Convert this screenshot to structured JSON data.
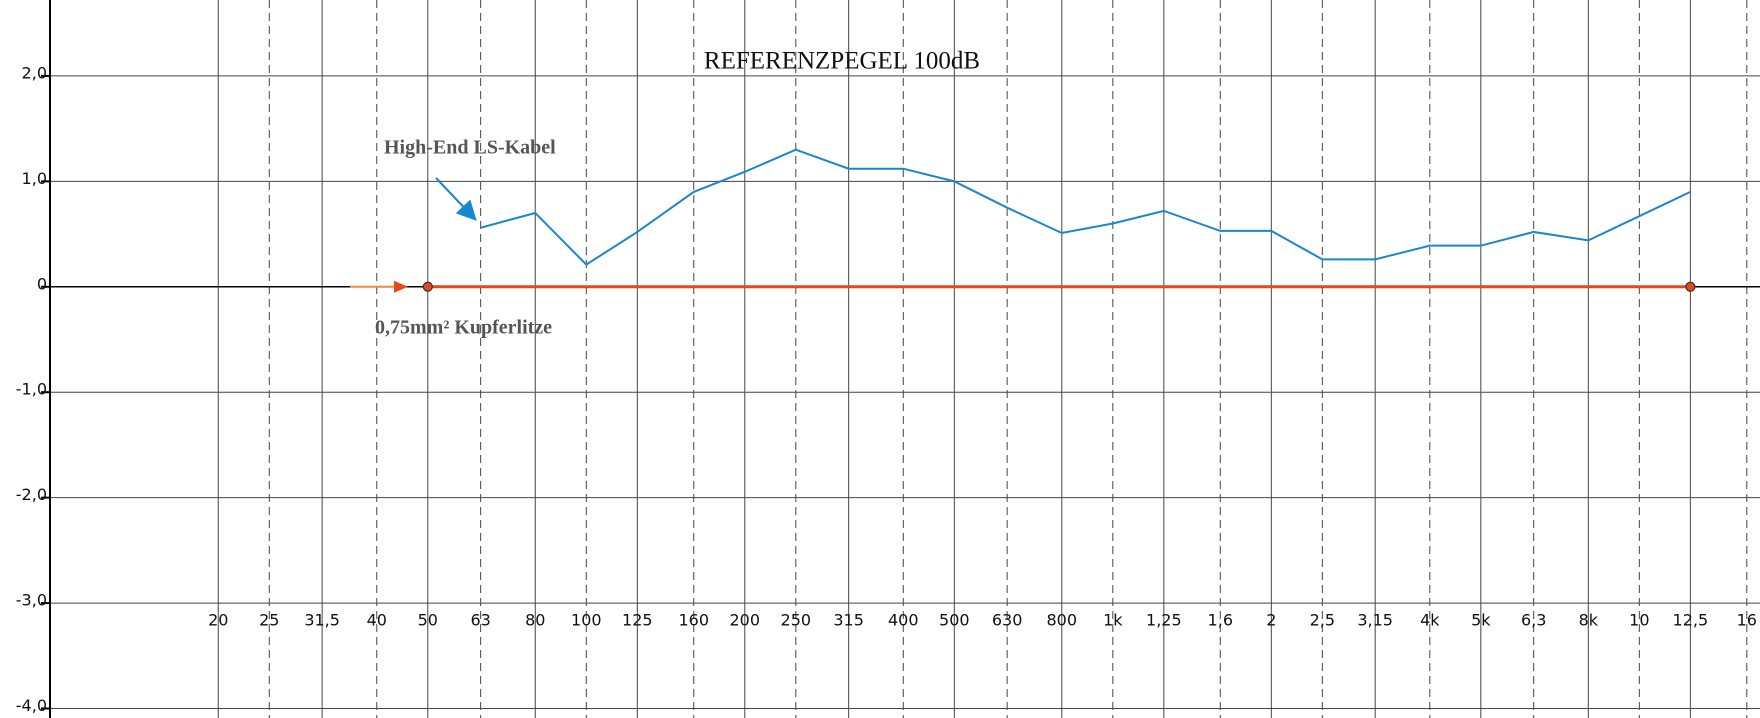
{
  "chart_data": {
    "type": "line",
    "title": "REFERENZPEGEL 100dB",
    "xscale": "log",
    "grid": true,
    "xlim": [
      7.7,
      16950
    ],
    "ylim": [
      -4.09,
      2.72
    ],
    "xticks": [
      20,
      25,
      {
        "value": 31.5,
        "label": "31,5"
      },
      40,
      50,
      63,
      80,
      100,
      125,
      160,
      200,
      250,
      315,
      400,
      500,
      630,
      800,
      {
        "value": 1000,
        "label": "1k"
      },
      {
        "value": 1250,
        "label": "1,25"
      },
      {
        "value": 1600,
        "label": "1,6"
      },
      {
        "value": 2000,
        "label": "2"
      },
      {
        "value": 2500,
        "label": "2,5"
      },
      {
        "value": 3150,
        "label": "3,15"
      },
      {
        "value": 4000,
        "label": "4k"
      },
      {
        "value": 5000,
        "label": "5k"
      },
      {
        "value": 6300,
        "label": "6,3"
      },
      {
        "value": 8000,
        "label": "8k"
      },
      {
        "value": 10000,
        "label": "10"
      },
      {
        "value": 12500,
        "label": "12,5"
      },
      {
        "value": 16000,
        "label": "16"
      }
    ],
    "yticks": [
      {
        "value": 2,
        "label": "2,0"
      },
      {
        "value": 1,
        "label": "1,0"
      },
      0,
      {
        "value": -1,
        "label": "-1,0"
      },
      {
        "value": -2,
        "label": "-2,0"
      },
      {
        "value": -3,
        "label": "-3,0"
      },
      {
        "value": -4,
        "label": "-4,0"
      }
    ],
    "series": [
      {
        "color": "#1a86cf",
        "x": [
          63,
          80,
          100,
          125,
          160,
          200,
          250,
          315,
          400,
          500,
          630,
          800,
          1000,
          1250,
          1600,
          2000,
          2500,
          3150,
          4000,
          5000,
          6300,
          8000,
          12500
        ],
        "values": [
          0.56,
          0.7,
          0.21,
          0.52,
          0.9,
          1.09,
          1.3,
          1.12,
          1.12,
          1.0,
          0.75,
          0.51,
          0.6,
          0.72,
          0.53,
          0.53,
          0.26,
          0.26,
          0.39,
          0.39,
          0.52,
          0.44,
          0.9
        ]
      },
      {
        "color": "#e8461c",
        "x": [
          50,
          12500
        ],
        "values": [
          0,
          0
        ]
      }
    ],
    "annotations": [
      "High-End LS-Kabel",
      "0,75mm² Kupferlitze"
    ]
  }
}
